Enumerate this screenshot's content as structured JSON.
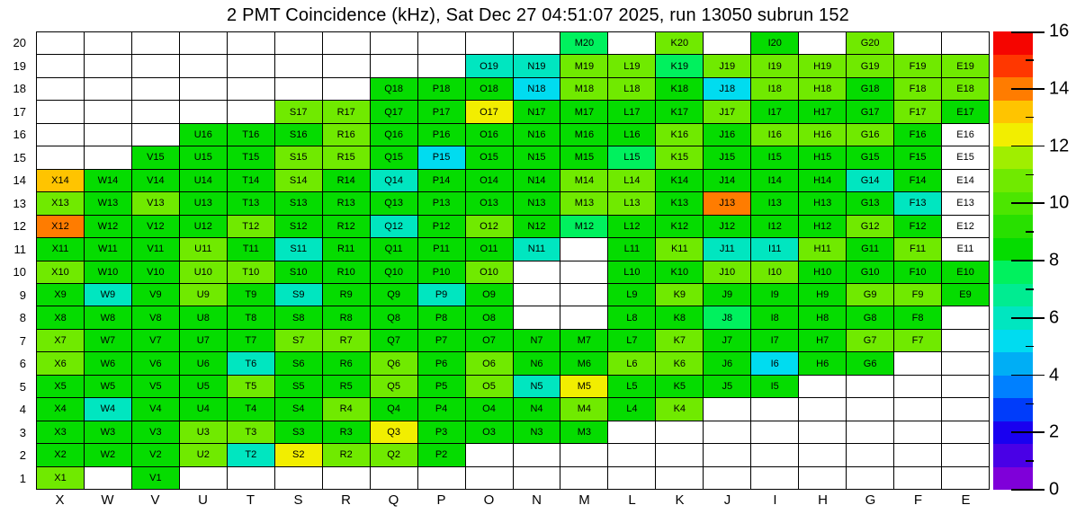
{
  "chart_data": {
    "type": "heatmap",
    "title": "2 PMT Coincidence (kHz), Sat Dec 27 04:51:07 2025, run 13050 subrun 152",
    "xlabel": "",
    "ylabel": "",
    "grid": true,
    "columns": [
      "X",
      "W",
      "V",
      "U",
      "T",
      "S",
      "R",
      "Q",
      "P",
      "O",
      "N",
      "M",
      "L",
      "K",
      "J",
      "I",
      "H",
      "G",
      "F",
      "E"
    ],
    "rows": [
      20,
      19,
      18,
      17,
      16,
      15,
      14,
      13,
      12,
      11,
      10,
      9,
      8,
      7,
      6,
      5,
      4,
      3,
      2,
      1
    ],
    "palette": {
      "w": {
        "hex": "#FFFFFF",
        "approx_kHz": 0
      },
      "cy": {
        "hex": "#00DCF0",
        "approx_kHz": 5.2
      },
      "tl": {
        "hex": "#00E6C0",
        "approx_kHz": 6.0
      },
      "sg": {
        "hex": "#00F15E",
        "approx_kHz": 7.6
      },
      "g": {
        "hex": "#05DC00",
        "approx_kHz": 8.4
      },
      "c": {
        "hex": "#70EA00",
        "approx_kHz": 10.8
      },
      "y": {
        "hex": "#F2EE00",
        "approx_kHz": 12.4
      },
      "gd": {
        "hex": "#FFC400",
        "approx_kHz": 13.2
      },
      "o": {
        "hex": "#FF7C00",
        "approx_kHz": 14.0
      }
    },
    "cells": {
      "20": {
        "M": "sg",
        "K": "c",
        "I": "g",
        "G": "c"
      },
      "19": {
        "O": "tl",
        "N": "tl",
        "M": "c",
        "L": "c",
        "K": "sg",
        "J": "c",
        "I": "c",
        "H": "c",
        "G": "c",
        "F": "c",
        "E": "c"
      },
      "18": {
        "Q": "g",
        "P": "g",
        "O": "g",
        "N": "cy",
        "M": "c",
        "L": "c",
        "K": "g",
        "J": "cy",
        "I": "c",
        "H": "c",
        "G": "g",
        "F": "c",
        "E": "c"
      },
      "17": {
        "S": "c",
        "R": "c",
        "Q": "g",
        "P": "g",
        "O": "y",
        "N": "g",
        "M": "g",
        "L": "g",
        "K": "g",
        "J": "c",
        "I": "g",
        "H": "g",
        "G": "g",
        "F": "c",
        "E": "g"
      },
      "16": {
        "U": "g",
        "T": "g",
        "S": "g",
        "R": "c",
        "Q": "g",
        "P": "g",
        "O": "g",
        "N": "g",
        "M": "g",
        "L": "g",
        "K": "c",
        "J": "g",
        "I": "c",
        "H": "c",
        "G": "c",
        "F": "g",
        "E": "w"
      },
      "15": {
        "V": "g",
        "U": "g",
        "T": "g",
        "S": "c",
        "R": "c",
        "Q": "g",
        "P": "cy",
        "O": "g",
        "N": "g",
        "M": "g",
        "L": "sg",
        "K": "c",
        "J": "g",
        "I": "g",
        "H": "g",
        "G": "g",
        "F": "g",
        "E": "w"
      },
      "14": {
        "X": "gd",
        "W": "g",
        "V": "g",
        "U": "g",
        "T": "g",
        "S": "c",
        "R": "g",
        "Q": "tl",
        "P": "g",
        "O": "g",
        "N": "g",
        "M": "c",
        "L": "c",
        "K": "g",
        "J": "g",
        "I": "g",
        "H": "g",
        "G": "tl",
        "F": "g",
        "E": "w"
      },
      "13": {
        "X": "c",
        "W": "g",
        "V": "c",
        "U": "g",
        "T": "g",
        "S": "g",
        "R": "g",
        "Q": "g",
        "P": "g",
        "O": "g",
        "N": "g",
        "M": "c",
        "L": "c",
        "K": "g",
        "J": "o",
        "I": "g",
        "H": "g",
        "G": "g",
        "F": "tl",
        "E": "w"
      },
      "12": {
        "X": "o",
        "W": "g",
        "V": "g",
        "U": "g",
        "T": "c",
        "S": "g",
        "R": "g",
        "Q": "tl",
        "P": "g",
        "O": "c",
        "N": "g",
        "M": "sg",
        "L": "g",
        "K": "g",
        "J": "g",
        "I": "g",
        "H": "g",
        "G": "c",
        "F": "g",
        "E": "w"
      },
      "11": {
        "X": "g",
        "W": "g",
        "V": "g",
        "U": "c",
        "T": "g",
        "S": "tl",
        "R": "g",
        "Q": "g",
        "P": "g",
        "O": "g",
        "N": "tl",
        "L": "g",
        "K": "c",
        "J": "tl",
        "I": "tl",
        "H": "c",
        "G": "g",
        "F": "c",
        "E": "w"
      },
      "10": {
        "X": "c",
        "W": "g",
        "V": "g",
        "U": "c",
        "T": "c",
        "S": "g",
        "R": "g",
        "Q": "g",
        "P": "g",
        "O": "c",
        "L": "g",
        "K": "g",
        "J": "c",
        "I": "c",
        "H": "g",
        "G": "g",
        "F": "g",
        "E": "g"
      },
      "9": {
        "X": "g",
        "W": "tl",
        "V": "g",
        "U": "c",
        "T": "g",
        "S": "tl",
        "R": "g",
        "Q": "g",
        "P": "tl",
        "O": "g",
        "L": "g",
        "K": "c",
        "J": "g",
        "I": "g",
        "H": "g",
        "G": "c",
        "F": "c",
        "E": "g"
      },
      "8": {
        "X": "g",
        "W": "g",
        "V": "g",
        "U": "g",
        "T": "g",
        "S": "g",
        "R": "g",
        "Q": "g",
        "P": "g",
        "O": "g",
        "L": "g",
        "K": "g",
        "J": "sg",
        "I": "g",
        "H": "g",
        "G": "g",
        "F": "g"
      },
      "7": {
        "X": "c",
        "W": "g",
        "V": "g",
        "U": "g",
        "T": "g",
        "S": "c",
        "R": "c",
        "Q": "g",
        "P": "g",
        "O": "g",
        "N": "g",
        "M": "g",
        "L": "g",
        "K": "c",
        "J": "g",
        "I": "g",
        "H": "g",
        "G": "c",
        "F": "c"
      },
      "6": {
        "X": "c",
        "W": "g",
        "V": "g",
        "U": "g",
        "T": "tl",
        "S": "g",
        "R": "g",
        "Q": "c",
        "P": "g",
        "O": "c",
        "N": "g",
        "M": "g",
        "L": "c",
        "K": "c",
        "J": "g",
        "I": "cy",
        "H": "g",
        "G": "g"
      },
      "5": {
        "X": "g",
        "W": "g",
        "V": "g",
        "U": "g",
        "T": "c",
        "S": "g",
        "R": "g",
        "Q": "c",
        "P": "g",
        "O": "c",
        "N": "tl",
        "M": "y",
        "L": "g",
        "K": "g",
        "J": "g",
        "I": "g"
      },
      "4": {
        "X": "g",
        "W": "tl",
        "V": "g",
        "U": "g",
        "T": "g",
        "S": "g",
        "R": "c",
        "Q": "g",
        "P": "g",
        "O": "g",
        "N": "g",
        "M": "c",
        "L": "g",
        "K": "c"
      },
      "3": {
        "X": "g",
        "W": "g",
        "V": "g",
        "U": "c",
        "T": "c",
        "S": "g",
        "R": "g",
        "Q": "y",
        "P": "g",
        "O": "g",
        "N": "g",
        "M": "g"
      },
      "2": {
        "X": "g",
        "W": "g",
        "V": "g",
        "U": "c",
        "T": "tl",
        "S": "y",
        "R": "c",
        "Q": "c",
        "P": "g"
      },
      "1": {
        "X": "c",
        "V": "g"
      }
    },
    "colorbar": {
      "min": 0,
      "max": 16,
      "major_tick_labels": [
        0,
        2,
        4,
        6,
        8,
        10,
        12,
        14,
        16
      ],
      "bands_bottom_to_top": [
        "#7F00D9",
        "#4900E6",
        "#1900F0",
        "#003CFA",
        "#0080FF",
        "#00AEF5",
        "#00DCF0",
        "#00E6C0",
        "#00EC91",
        "#00F15E",
        "#05DC00",
        "#28E000",
        "#4CE600",
        "#70EA00",
        "#A0EE00",
        "#F2EE00",
        "#FFC400",
        "#FF7C00",
        "#FF3700",
        "#F50500"
      ]
    }
  }
}
